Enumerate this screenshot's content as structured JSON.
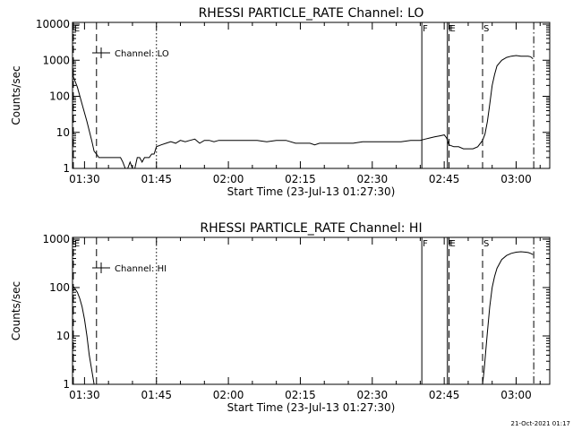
{
  "chart_data": [
    {
      "type": "line",
      "title": "RHESSI PARTICLE_RATE Channel: LO",
      "xlabel": "Start Time (23-Jul-13 01:27:30)",
      "ylabel": "Counts/sec",
      "yscale": "log",
      "ylim": [
        1,
        10000
      ],
      "xlim": [
        "01:27:30",
        "03:07:00"
      ],
      "x_ticks": [
        "01:30",
        "01:45",
        "02:00",
        "02:15",
        "02:30",
        "02:45",
        "03:00"
      ],
      "y_ticks": [
        "1",
        "10",
        "100",
        "1000",
        "10000"
      ],
      "grid": false,
      "legend": {
        "position": "top-left",
        "entries": [
          "Channel: LO"
        ]
      },
      "markers": [
        {
          "label": "E",
          "time": "01:27:40",
          "style": "dashed"
        },
        {
          "label": "",
          "time": "01:32:30",
          "style": "dashed"
        },
        {
          "label": "",
          "time": "01:45:00",
          "style": "dotted"
        },
        {
          "label": "F",
          "time": "02:40:20",
          "style": "solid"
        },
        {
          "label": "F",
          "time": "02:45:40",
          "style": "solid"
        },
        {
          "label": "E",
          "time": "02:46:00",
          "style": "dashed"
        },
        {
          "label": "S",
          "time": "02:53:00",
          "style": "dashed"
        },
        {
          "label": "",
          "time": "03:03:40",
          "style": "dashdot"
        }
      ],
      "series": [
        {
          "name": "Channel: LO",
          "x": [
            "01:27:30",
            "01:28:30",
            "01:29:30",
            "01:30:30",
            "01:31:30",
            "01:32:00",
            "01:32:30",
            "01:33:00",
            "01:33:30",
            "01:34:00",
            "01:35:00",
            "01:36:00",
            "01:37:00",
            "01:37:30",
            "01:38:00",
            "01:38:30",
            "01:39:00",
            "01:39:30",
            "01:40:00",
            "01:40:30",
            "01:41:00",
            "01:41:30",
            "01:42:00",
            "01:42:30",
            "01:43:00",
            "01:43:30",
            "01:44:00",
            "01:44:30",
            "01:45:00",
            "01:46:00",
            "01:47:00",
            "01:48:00",
            "01:49:00",
            "01:50:00",
            "01:51:00",
            "01:52:00",
            "01:53:00",
            "01:54:00",
            "01:55:00",
            "01:56:00",
            "01:57:00",
            "01:58:00",
            "01:59:00",
            "02:00:00",
            "02:02:00",
            "02:04:00",
            "02:06:00",
            "02:08:00",
            "02:10:00",
            "02:12:00",
            "02:14:00",
            "02:16:00",
            "02:17:00",
            "02:18:00",
            "02:19:00",
            "02:20:00",
            "02:22:00",
            "02:24:00",
            "02:26:00",
            "02:28:00",
            "02:30:00",
            "02:32:00",
            "02:34:00",
            "02:36:00",
            "02:38:00",
            "02:39:00",
            "02:40:00",
            "02:41:00",
            "02:42:00",
            "02:43:00",
            "02:44:00",
            "02:45:00",
            "02:45:30",
            "02:46:00",
            "02:47:00",
            "02:48:00",
            "02:49:00",
            "02:50:00",
            "02:51:00",
            "02:52:00",
            "02:53:00",
            "02:53:30",
            "02:54:00",
            "02:54:30",
            "02:55:00",
            "02:55:30",
            "02:56:00",
            "02:57:00",
            "02:58:00",
            "02:59:00",
            "03:00:00",
            "03:01:00",
            "03:02:00",
            "03:02:30",
            "03:03:00",
            "03:03:30"
          ],
          "y": [
            400,
            180,
            60,
            20,
            6,
            3,
            2.5,
            2,
            2,
            2,
            2,
            2,
            2,
            2,
            1.5,
            1,
            1,
            1.5,
            1,
            1,
            2,
            2,
            1.5,
            2,
            2,
            2,
            2.5,
            2.5,
            4,
            4.5,
            5,
            5.5,
            5,
            6,
            5.5,
            6,
            6.5,
            5,
            6,
            6,
            5.5,
            6,
            6,
            6,
            6,
            6,
            6,
            5.5,
            6,
            6,
            5,
            5,
            5,
            4.5,
            5,
            5,
            5,
            5,
            5,
            5.5,
            5.5,
            5.5,
            5.5,
            5.5,
            6,
            6,
            6,
            6.5,
            7,
            7.5,
            8,
            8.5,
            7,
            4.5,
            4,
            4,
            3.5,
            3.5,
            3.5,
            4,
            6,
            9,
            20,
            60,
            200,
            400,
            700,
            1000,
            1200,
            1300,
            1350,
            1300,
            1300,
            1300,
            1250,
            1100
          ]
        }
      ]
    },
    {
      "type": "line",
      "title": "RHESSI PARTICLE_RATE Channel: HI",
      "xlabel": "Start Time (23-Jul-13 01:27:30)",
      "ylabel": "Counts/sec",
      "yscale": "log",
      "ylim": [
        1,
        1000
      ],
      "xlim": [
        "01:27:30",
        "03:07:00"
      ],
      "x_ticks": [
        "01:30",
        "01:45",
        "02:00",
        "02:15",
        "02:30",
        "02:45",
        "03:00"
      ],
      "y_ticks": [
        "1",
        "10",
        "100",
        "1000"
      ],
      "grid": false,
      "legend": {
        "position": "top-left",
        "entries": [
          "Channel: HI"
        ]
      },
      "markers": [
        {
          "label": "E",
          "time": "01:27:40",
          "style": "dashed"
        },
        {
          "label": "",
          "time": "01:32:30",
          "style": "dashed"
        },
        {
          "label": "",
          "time": "01:45:00",
          "style": "dotted"
        },
        {
          "label": "F",
          "time": "02:40:20",
          "style": "solid"
        },
        {
          "label": "F",
          "time": "02:45:40",
          "style": "solid"
        },
        {
          "label": "E",
          "time": "02:46:00",
          "style": "dashed"
        },
        {
          "label": "S",
          "time": "02:53:00",
          "style": "dashed"
        },
        {
          "label": "",
          "time": "03:03:40",
          "style": "dashdot"
        }
      ],
      "series": [
        {
          "name": "Channel: HI",
          "segments": [
            {
              "x": [
                "01:27:30",
                "01:28:00",
                "01:28:30",
                "01:29:00",
                "01:29:30",
                "01:30:00",
                "01:30:30",
                "01:31:00",
                "01:31:30",
                "01:32:00"
              ],
              "y": [
                110,
                95,
                80,
                60,
                40,
                22,
                10,
                4,
                2,
                1
              ]
            },
            {
              "x": [
                "02:53:00",
                "02:53:20",
                "02:53:40",
                "02:54:00",
                "02:54:30",
                "02:55:00",
                "02:55:30",
                "02:56:00",
                "02:57:00",
                "02:58:00",
                "02:59:00",
                "03:00:00",
                "03:01:00",
                "03:02:00",
                "03:02:30",
                "03:03:00",
                "03:03:30"
              ],
              "y": [
                1,
                2,
                5,
                12,
                40,
                100,
                170,
                250,
                380,
                460,
                510,
                540,
                550,
                540,
                530,
                510,
                480
              ]
            }
          ]
        }
      ]
    }
  ],
  "footer": {
    "timestamp": "21-Oct-2021 01:17"
  }
}
